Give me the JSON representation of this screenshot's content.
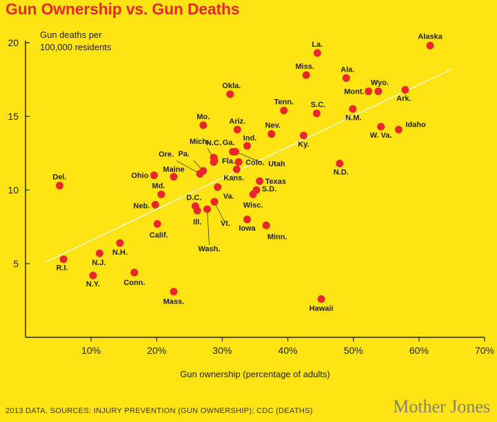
{
  "title": "Gun Ownership vs. Gun Deaths",
  "footer": {
    "source_text": "2013 DATA. SOURCES: INJURY PREVENTION (GUN OWNERSHIP); CDC (DEATHS)",
    "brand": "Mother Jones"
  },
  "colors": {
    "background": "#FFE414",
    "points": "#E8272A",
    "title": "#E8272A",
    "trend": "#FFFFFF"
  },
  "chart_data": {
    "type": "scatter",
    "title": "Gun Ownership vs. Gun Deaths",
    "xlabel": "Gun ownership (percentage of adults)",
    "ylabel": [
      "Gun deaths per",
      "100,000 residents"
    ],
    "xlim": [
      0,
      70
    ],
    "ylim": [
      0,
      20
    ],
    "x_ticks": [
      10,
      20,
      30,
      40,
      50,
      60,
      70
    ],
    "x_tick_labels": [
      "10%",
      "20%",
      "30%",
      "40%",
      "50%",
      "60%",
      "70%"
    ],
    "y_ticks": [
      5,
      10,
      15,
      20
    ],
    "y_tick_labels": [
      "5",
      "10",
      "15",
      "20"
    ],
    "grid": false,
    "trendline": {
      "from": [
        3,
        5.1
      ],
      "to": [
        65,
        18.2
      ]
    },
    "points": [
      {
        "label": "Alaska",
        "x": 61.7,
        "y": 19.8
      },
      {
        "label": "La.",
        "x": 44.5,
        "y": 19.3
      },
      {
        "label": "Miss.",
        "x": 42.8,
        "y": 17.8
      },
      {
        "label": "Ala.",
        "x": 48.9,
        "y": 17.6
      },
      {
        "label": "Wyo.",
        "x": 53.8,
        "y": 16.7
      },
      {
        "label": "Mont.",
        "x": 52.3,
        "y": 16.7
      },
      {
        "label": "Ark.",
        "x": 57.9,
        "y": 16.8
      },
      {
        "label": "Okla.",
        "x": 31.2,
        "y": 16.5
      },
      {
        "label": "Tenn.",
        "x": 39.4,
        "y": 15.4
      },
      {
        "label": "S.C.",
        "x": 44.4,
        "y": 15.2
      },
      {
        "label": "N.M.",
        "x": 49.9,
        "y": 15.5
      },
      {
        "label": "Idaho",
        "x": 56.9,
        "y": 14.1
      },
      {
        "label": "W. Va.",
        "x": 54.2,
        "y": 14.3
      },
      {
        "label": "Mo.",
        "x": 27.1,
        "y": 14.4
      },
      {
        "label": "Ariz.",
        "x": 32.3,
        "y": 14.1
      },
      {
        "label": "Nev.",
        "x": 37.5,
        "y": 13.8
      },
      {
        "label": "Ky.",
        "x": 42.4,
        "y": 13.7
      },
      {
        "label": "Ind.",
        "x": 33.8,
        "y": 13.0
      },
      {
        "label": "Ga.",
        "x": 31.6,
        "y": 12.6
      },
      {
        "label": "Utah",
        "x": 32.0,
        "y": 12.6
      },
      {
        "label": "N.C.",
        "x": 28.7,
        "y": 12.2
      },
      {
        "label": "Fla.",
        "x": 28.7,
        "y": 11.9
      },
      {
        "label": "Mich.",
        "x": 28.8,
        "y": 12.0
      },
      {
        "label": "Pa.",
        "x": 27.1,
        "y": 11.3
      },
      {
        "label": "Ore.",
        "x": 26.6,
        "y": 11.1
      },
      {
        "label": "Colo.",
        "x": 32.5,
        "y": 11.9
      },
      {
        "label": "N.D.",
        "x": 47.9,
        "y": 11.8
      },
      {
        "label": "Kans.",
        "x": 32.2,
        "y": 11.4
      },
      {
        "label": "Texas",
        "x": 35.7,
        "y": 10.6
      },
      {
        "label": "S.D.",
        "x": 35.2,
        "y": 10.0
      },
      {
        "label": "Wisc.",
        "x": 34.7,
        "y": 9.7
      },
      {
        "label": "Maine",
        "x": 22.6,
        "y": 10.9
      },
      {
        "label": "Ohio",
        "x": 19.6,
        "y": 11.0
      },
      {
        "label": "Md.",
        "x": 20.7,
        "y": 9.7
      },
      {
        "label": "Neb.",
        "x": 19.8,
        "y": 9.0
      },
      {
        "label": "Va.",
        "x": 29.3,
        "y": 10.2
      },
      {
        "label": "D.C.",
        "x": 25.9,
        "y": 8.9
      },
      {
        "label": "Ill.",
        "x": 26.2,
        "y": 8.6
      },
      {
        "label": "Vt.",
        "x": 28.8,
        "y": 9.2
      },
      {
        "label": "Wash.",
        "x": 27.7,
        "y": 8.7
      },
      {
        "label": "Iowa",
        "x": 33.8,
        "y": 8.0
      },
      {
        "label": "Minn.",
        "x": 36.7,
        "y": 7.6
      },
      {
        "label": "Calif.",
        "x": 20.1,
        "y": 7.7
      },
      {
        "label": "Del.",
        "x": 5.2,
        "y": 10.3
      },
      {
        "label": "N.H.",
        "x": 14.4,
        "y": 6.4
      },
      {
        "label": "N.J.",
        "x": 11.3,
        "y": 5.7
      },
      {
        "label": "R.I.",
        "x": 5.8,
        "y": 5.3
      },
      {
        "label": "N.Y.",
        "x": 10.3,
        "y": 4.2
      },
      {
        "label": "Conn.",
        "x": 16.6,
        "y": 4.4
      },
      {
        "label": "Mass.",
        "x": 22.6,
        "y": 3.1
      },
      {
        "label": "Hawaii",
        "x": 45.1,
        "y": 2.6
      }
    ]
  }
}
